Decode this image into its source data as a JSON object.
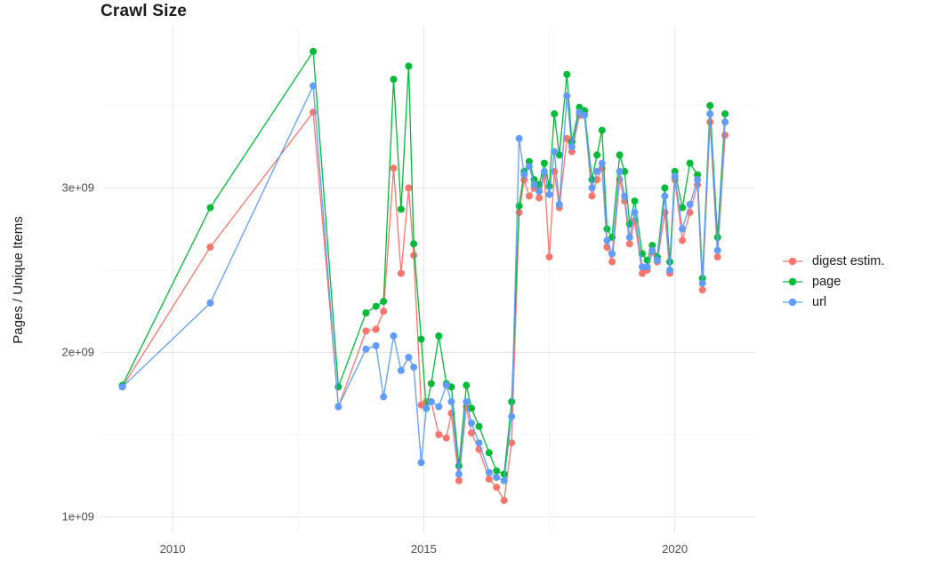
{
  "chart_data": {
    "type": "line",
    "marker": "circle",
    "title": "Crawl Size",
    "xlabel": "",
    "ylabel": "Pages / Unique Items",
    "legend_position": "right",
    "grid": true,
    "xlim": [
      2008.6,
      2021.6
    ],
    "ylim_billions": [
      0.9,
      3.98
    ],
    "x_ticks": [
      {
        "value": 2010,
        "label": "2010"
      },
      {
        "value": 2015,
        "label": "2015"
      },
      {
        "value": 2020,
        "label": "2020"
      }
    ],
    "x_minor_ticks": [
      2012.5,
      2017.5
    ],
    "y_ticks": [
      {
        "value": 1,
        "label": "1e+09"
      },
      {
        "value": 2,
        "label": "2e+09"
      },
      {
        "value": 3,
        "label": "3e+09"
      }
    ],
    "y_minor_ticks": [
      1.5,
      2.5,
      3.5
    ],
    "x": [
      2009.0,
      2010.75,
      2012.8,
      2013.3,
      2013.85,
      2014.05,
      2014.2,
      2014.4,
      2014.55,
      2014.7,
      2014.8,
      2014.95,
      2015.05,
      2015.15,
      2015.3,
      2015.45,
      2015.55,
      2015.7,
      2015.85,
      2015.95,
      2016.1,
      2016.3,
      2016.45,
      2016.6,
      2016.75,
      2016.9,
      2017.0,
      2017.1,
      2017.2,
      2017.3,
      2017.4,
      2017.5,
      2017.6,
      2017.7,
      2017.85,
      2017.95,
      2018.1,
      2018.2,
      2018.35,
      2018.45,
      2018.55,
      2018.65,
      2018.75,
      2018.9,
      2019.0,
      2019.1,
      2019.2,
      2019.35,
      2019.45,
      2019.55,
      2019.65,
      2019.8,
      2019.9,
      2020.0,
      2020.15,
      2020.3,
      2020.45,
      2020.55,
      2020.7,
      2020.85,
      2021.0
    ],
    "series": [
      {
        "key": "digest-estim",
        "name": "digest estim.",
        "color": "#F8766D",
        "values_billions": [
          1.79,
          2.64,
          3.46,
          1.67,
          2.13,
          2.14,
          2.25,
          3.12,
          2.48,
          3.0,
          2.59,
          1.68,
          1.7,
          1.7,
          1.5,
          1.48,
          1.63,
          1.22,
          1.67,
          1.51,
          1.41,
          1.23,
          1.18,
          1.1,
          1.45,
          2.85,
          3.05,
          2.95,
          3.0,
          2.94,
          3.08,
          2.58,
          3.1,
          2.88,
          3.3,
          3.22,
          3.44,
          3.45,
          2.95,
          3.05,
          3.12,
          2.64,
          2.55,
          3.05,
          2.92,
          2.66,
          2.8,
          2.48,
          2.5,
          2.61,
          2.55,
          2.85,
          2.48,
          3.05,
          2.68,
          2.85,
          3.02,
          2.38,
          3.4,
          2.58,
          3.32
        ]
      },
      {
        "key": "page",
        "name": "page",
        "color": "#00BA38",
        "values_billions": [
          1.8,
          2.88,
          3.83,
          1.79,
          2.24,
          2.28,
          2.31,
          3.66,
          2.87,
          3.74,
          2.66,
          2.08,
          1.66,
          1.81,
          2.1,
          1.81,
          1.79,
          1.31,
          1.8,
          1.66,
          1.55,
          1.39,
          1.28,
          1.26,
          1.7,
          2.89,
          3.1,
          3.16,
          3.05,
          3.02,
          3.15,
          3.01,
          3.45,
          3.2,
          3.69,
          3.28,
          3.49,
          3.47,
          3.05,
          3.2,
          3.35,
          2.75,
          2.7,
          3.2,
          3.1,
          2.78,
          2.92,
          2.6,
          2.56,
          2.65,
          2.58,
          3.0,
          2.55,
          3.1,
          2.88,
          3.15,
          3.08,
          2.45,
          3.5,
          2.7,
          3.45
        ]
      },
      {
        "key": "url",
        "name": "url",
        "color": "#619CFF",
        "values_billions": [
          1.79,
          2.3,
          3.62,
          1.67,
          2.02,
          2.04,
          1.73,
          2.1,
          1.89,
          1.97,
          1.91,
          1.33,
          1.66,
          1.7,
          1.67,
          1.8,
          1.7,
          1.26,
          1.7,
          1.57,
          1.45,
          1.27,
          1.24,
          1.22,
          1.61,
          3.3,
          3.08,
          3.13,
          3.02,
          2.98,
          3.1,
          2.96,
          3.22,
          2.9,
          3.56,
          3.25,
          3.46,
          3.44,
          3.0,
          3.1,
          3.15,
          2.68,
          2.6,
          3.1,
          2.95,
          2.7,
          2.85,
          2.52,
          2.52,
          2.62,
          2.56,
          2.95,
          2.5,
          3.07,
          2.75,
          2.9,
          3.05,
          2.42,
          3.45,
          2.62,
          3.4
        ]
      }
    ]
  }
}
